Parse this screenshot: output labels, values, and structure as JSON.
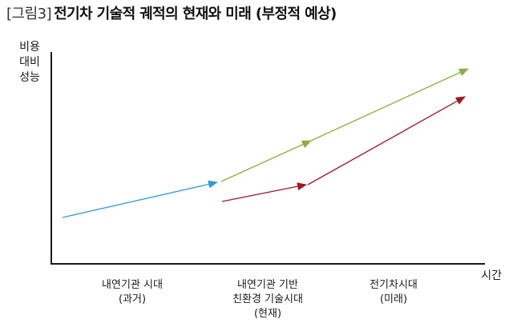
{
  "header": {
    "prefix": "[그림3]",
    "title": "전기차 기술적 궤적의 현재와 미래 (부정적 예상)"
  },
  "axes": {
    "y_label_lines": [
      "비용",
      "대비",
      "성능"
    ],
    "x_end_label": "시간",
    "phases": [
      {
        "lines": [
          "내연기관 시대",
          "(과거)"
        ]
      },
      {
        "lines": [
          "내연기관 기반",
          "친환경 기술시대",
          "(현재)"
        ]
      },
      {
        "lines": [
          "전기차시대",
          "(미래)"
        ]
      }
    ]
  },
  "colors": {
    "past_arrow": "#2f9bd6",
    "green_arrow": "#8bb03e",
    "red_arrow": "#a3161e",
    "axis": "#1a1a1a"
  }
}
